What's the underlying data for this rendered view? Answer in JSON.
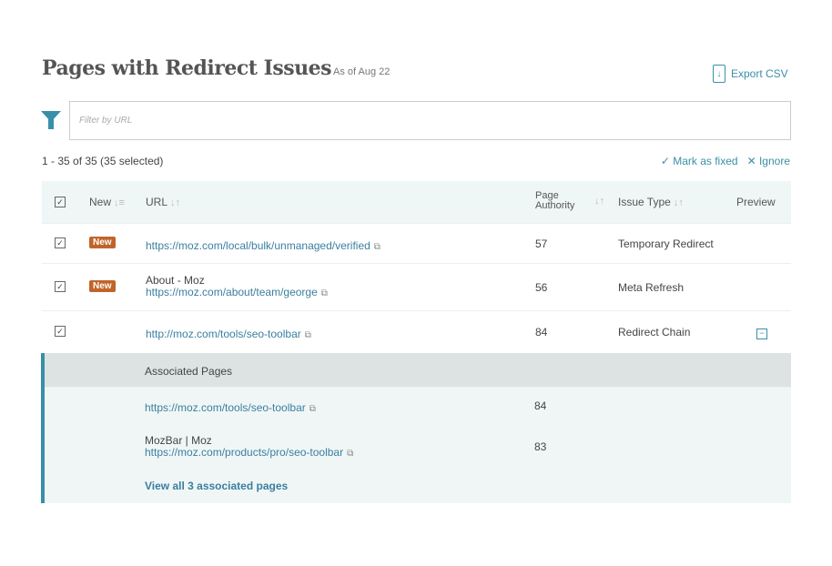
{
  "header": {
    "title": "Pages with Redirect Issues",
    "as_of": "As of Aug 22",
    "export_label": "Export CSV",
    "export_icon": "download-document-icon"
  },
  "filter": {
    "placeholder": "Filter by URL",
    "icon": "filter-funnel-icon"
  },
  "summary": {
    "count": "1 - 35 of 35 (35 selected)",
    "mark_fixed": "Mark as fixed",
    "ignore": "Ignore"
  },
  "columns": {
    "new": "New",
    "url": "URL",
    "page_authority": "Page Authority",
    "issue_type": "Issue Type",
    "preview": "Preview"
  },
  "colors": {
    "accent": "#3a8fa8",
    "badge": "#c0652a"
  },
  "rows": [
    {
      "checked": true,
      "badge": "New",
      "title": "",
      "url": "https://moz.com/local/bulk/unmanaged/verified",
      "pa": "57",
      "issue": "Temporary Redirect"
    },
    {
      "checked": true,
      "badge": "New",
      "title": "About - Moz",
      "url": "https://moz.com/about/team/george",
      "pa": "56",
      "issue": "Meta Refresh"
    },
    {
      "checked": true,
      "badge": "",
      "title": "",
      "url": "http://moz.com/tools/seo-toolbar",
      "pa": "84",
      "issue": "Redirect Chain",
      "expanded": true
    }
  ],
  "associated": {
    "heading": "Associated Pages",
    "items": [
      {
        "title": "",
        "url": "https://moz.com/tools/seo-toolbar",
        "pa": "84"
      },
      {
        "title": "MozBar | Moz",
        "url": "https://moz.com/products/pro/seo-toolbar",
        "pa": "83"
      }
    ],
    "view_all": "View all 3 associated pages"
  }
}
